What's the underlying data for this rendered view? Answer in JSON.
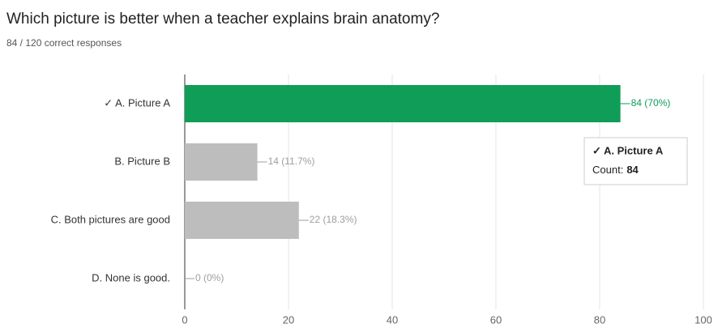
{
  "chart_data": {
    "type": "bar",
    "orientation": "horizontal",
    "title": "Which picture is better when a teacher explains brain anatomy?",
    "subtitle": "84 / 120 correct responses",
    "categories": [
      "✓ A. Picture A",
      "B. Picture B",
      "C. Both pictures are good",
      "D. None is good."
    ],
    "values": [
      84,
      14,
      22,
      0
    ],
    "value_labels": [
      "84 (70%)",
      "14 (11.7%)",
      "22 (18.3%)",
      "0 (0%)"
    ],
    "colors": [
      "#0f9d58",
      "#bdbdbd",
      "#bdbdbd",
      "#bdbdbd"
    ],
    "label_colors": [
      "#0f9d58",
      "#9e9e9e",
      "#9e9e9e",
      "#9e9e9e"
    ],
    "xlim": [
      0,
      100
    ],
    "xticks": [
      0,
      20,
      40,
      60,
      80,
      100
    ],
    "grid": true,
    "tooltip": {
      "title": "✓ A. Picture A",
      "label": "Count:",
      "value": 84
    }
  }
}
